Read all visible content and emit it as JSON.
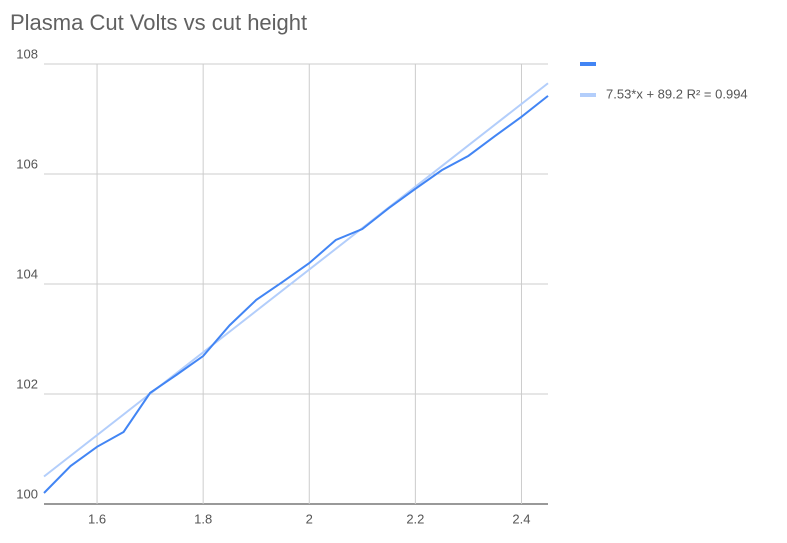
{
  "chart_data": {
    "type": "line",
    "title": "Plasma Cut Volts vs cut height",
    "series": [
      {
        "color": "#4285f4",
        "x": [
          1.5,
          1.55,
          1.6,
          1.65,
          1.7,
          1.75,
          1.8,
          1.85,
          1.9,
          1.95,
          2.0,
          2.05,
          2.1,
          2.15,
          2.2,
          2.25,
          2.3,
          2.35,
          2.4,
          2.45
        ],
        "values": [
          100.2,
          100.69,
          101.04,
          101.31,
          102.02,
          102.35,
          102.69,
          103.25,
          103.71,
          104.04,
          104.38,
          104.8,
          105.0,
          105.38,
          105.73,
          106.07,
          106.33,
          106.69,
          107.04,
          107.42
        ]
      },
      {
        "name": "7.53*x + 89.2 R² = 0.994",
        "color": "#b3cefb",
        "x": [
          1.5,
          2.45
        ],
        "values": [
          100.5,
          107.65
        ]
      }
    ],
    "xlim": [
      1.5,
      2.45
    ],
    "xticks": [
      1.6,
      1.8,
      2,
      2.2,
      2.4
    ],
    "ylim": [
      100,
      108
    ],
    "yticks": [
      100,
      102,
      104,
      106,
      108
    ],
    "grid": true,
    "legend": "right"
  }
}
